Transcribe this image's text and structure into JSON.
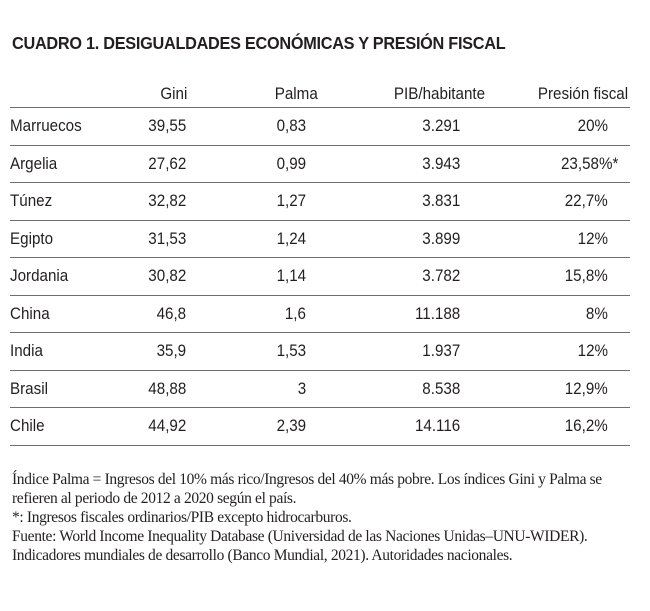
{
  "title": "CUADRO 1. DESIGUALDADES ECONÓMICAS Y PRESIÓN FISCAL",
  "table": {
    "columns": [
      "",
      "Gini",
      "Palma",
      "PIB/habitante",
      "Presión fiscal"
    ],
    "rows": [
      {
        "country": "Marruecos",
        "gini": "39,55",
        "palma": "0,83",
        "pib": "3.291",
        "presion": "20%"
      },
      {
        "country": "Argelia",
        "gini": "27,62",
        "palma": "0,99",
        "pib": "3.943",
        "presion": "23,58%*"
      },
      {
        "country": "Túnez",
        "gini": "32,82",
        "palma": "1,27",
        "pib": "3.831",
        "presion": "22,7%"
      },
      {
        "country": "Egipto",
        "gini": "31,53",
        "palma": "1,24",
        "pib": "3.899",
        "presion": "12%"
      },
      {
        "country": "Jordania",
        "gini": "30,82",
        "palma": "1,14",
        "pib": "3.782",
        "presion": "15,8%"
      },
      {
        "country": "China",
        "gini": "46,8",
        "palma": "1,6",
        "pib": "11.188",
        "presion": "8%"
      },
      {
        "country": "India",
        "gini": "35,9",
        "palma": "1,53",
        "pib": "1.937",
        "presion": "12%"
      },
      {
        "country": "Brasil",
        "gini": "48,88",
        "palma": "3",
        "pib": "8.538",
        "presion": "12,9%"
      },
      {
        "country": "Chile",
        "gini": "44,92",
        "palma": "2,39",
        "pib": "14.116",
        "presion": "16,2%"
      }
    ]
  },
  "notes": {
    "palma_note": "Índice Palma = Ingresos del 10% más rico/Ingresos del 40% más pobre. Los índices Gini y Palma se refieren al periodo de 2012 a 2020 según el país.",
    "asterisk_note": "*: Ingresos fiscales ordinarios/PIB excepto hidrocarburos.",
    "source": "Fuente: World Income Inequality Database (Universidad de las Naciones Unidas–UNU-WIDER). Indicadores mundiales de desarrollo (Banco Mundial, 2021). Autoridades nacionales."
  },
  "colors": {
    "text": "#231f20",
    "rule": "#6d6e70"
  }
}
